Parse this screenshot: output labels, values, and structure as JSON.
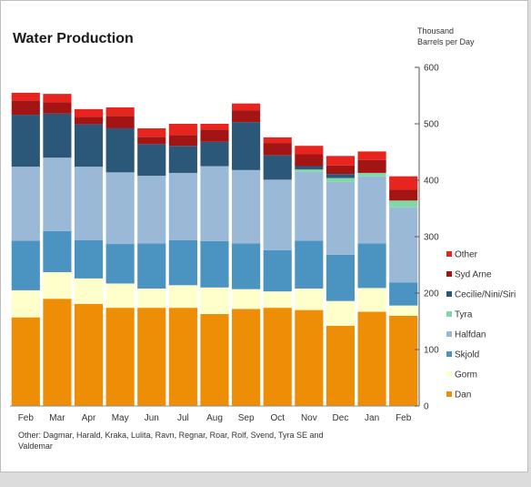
{
  "chart_data": {
    "type": "bar",
    "stacked": true,
    "title": "Water Production",
    "unit_label": [
      "Thousand",
      "Barrels per Day"
    ],
    "categories": [
      "Feb",
      "Mar",
      "Apr",
      "May",
      "Jun",
      "Jul",
      "Aug",
      "Sep",
      "Oct",
      "Nov",
      "Dec",
      "Jan",
      "Feb"
    ],
    "ylim": [
      0,
      600
    ],
    "yticks": [
      0,
      100,
      200,
      300,
      400,
      500,
      600
    ],
    "y_axis_side": "right",
    "legend_position": "right",
    "series": [
      {
        "name": "Dan",
        "color": "#ee8e07",
        "values": [
          157,
          190,
          181,
          174,
          174,
          174,
          163,
          172,
          174,
          170,
          142,
          167,
          160
        ]
      },
      {
        "name": "Gorm",
        "color": "#ffffcc",
        "values": [
          48,
          47,
          45,
          43,
          34,
          40,
          47,
          35,
          29,
          38,
          44,
          42,
          18
        ]
      },
      {
        "name": "Skjold",
        "color": "#4b93c0",
        "values": [
          88,
          73,
          68,
          70,
          80,
          80,
          82,
          81,
          73,
          85,
          82,
          79,
          41
        ]
      },
      {
        "name": "Halfdan",
        "color": "#9ab9d6",
        "values": [
          131,
          130,
          130,
          127,
          120,
          119,
          133,
          130,
          125,
          122,
          129,
          119,
          133
        ]
      },
      {
        "name": "Tyra",
        "color": "#80d8a8",
        "values": [
          0,
          0,
          0,
          0,
          0,
          0,
          0,
          0,
          0,
          4,
          7,
          6,
          12
        ]
      },
      {
        "name": "Cecilie/Nini/Siri",
        "color": "#2b5778",
        "values": [
          92,
          78,
          75,
          78,
          56,
          48,
          43,
          85,
          43,
          6,
          7,
          0,
          0
        ]
      },
      {
        "name": "Syd Arne",
        "color": "#a31515",
        "values": [
          25,
          20,
          13,
          22,
          13,
          19,
          22,
          21,
          22,
          21,
          15,
          23,
          19
        ]
      },
      {
        "name": "Other",
        "color": "#e8241f",
        "values": [
          14,
          15,
          14,
          15,
          15,
          20,
          10,
          12,
          10,
          15,
          17,
          15,
          24
        ]
      }
    ],
    "footnote": [
      "Other:  Dagmar, Harald, Kraka, Lulita, Ravn, Regnar, Roar, Rolf, Svend, Tyra SE and",
      "Valdemar"
    ]
  }
}
